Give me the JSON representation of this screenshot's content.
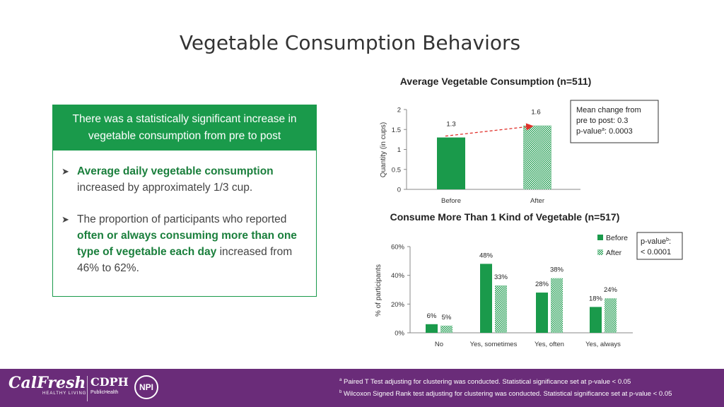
{
  "title": "Vegetable Consumption Behaviors",
  "panel": {
    "header": "There was a statistically significant increase in vegetable consumption from pre to post",
    "bullet1": {
      "bold": "Average daily vegetable consumption",
      "rest": " increased by approximately 1/3 cup."
    },
    "bullet2": {
      "pre": "The proportion of participants who reported ",
      "bold": "often or always consuming more than one type of vegetable each day",
      "rest": " increased from 46% to 62%."
    }
  },
  "chart_data": [
    {
      "type": "bar",
      "title": "Average Vegetable Consumption (n=511)",
      "ylabel": "Quantity (in cups)",
      "xlabel": "",
      "categories": [
        "Before",
        "After"
      ],
      "values": [
        1.3,
        1.6
      ],
      "data_labels": [
        "1.3",
        "1.6"
      ],
      "ylim": [
        0,
        2
      ],
      "yticks": [
        "0",
        "0.5",
        "1",
        "1.5",
        "2"
      ],
      "annotation": {
        "line1": "Mean change from",
        "line2": "pre to post: 0.3",
        "line3_pre": "p-value",
        "line3_sup": "a",
        "line3_post": ": 0.0003"
      }
    },
    {
      "type": "bar",
      "title": "Consume More Than 1 Kind of Vegetable (n=517)",
      "ylabel": "% of participants",
      "xlabel": "",
      "categories": [
        "No",
        "Yes, sometimes",
        "Yes, often",
        "Yes, always"
      ],
      "series": [
        {
          "name": "Before",
          "values": [
            6,
            48,
            28,
            18
          ],
          "labels": [
            "6%",
            "48%",
            "28%",
            "18%"
          ]
        },
        {
          "name": "After",
          "values": [
            5,
            33,
            38,
            24
          ],
          "labels": [
            "5%",
            "33%",
            "38%",
            "24%"
          ]
        }
      ],
      "ylim": [
        0,
        60
      ],
      "yticks": [
        "0%",
        "20%",
        "40%",
        "60%"
      ],
      "legend": "top-right",
      "annotation": {
        "line1_pre": "p-value",
        "line1_sup": "b",
        "line1_post": ":",
        "line2": "< 0.0001"
      }
    }
  ],
  "footer": {
    "note_a_sup": "a",
    "note_a": " Paired T Test adjusting for clustering was conducted. Statistical significance set at p-value < 0.05",
    "note_b_sup": "b",
    "note_b": " Wilcoxon Signed Rank test adjusting for clustering was conducted. Statistical significance set at p-value < 0.05",
    "logo1": "CalFresh",
    "logo1_sub": "HEALTHY LIVING",
    "logo2": "CDPH",
    "logo2_sub": "PublicHealth",
    "logo3": "NPI"
  },
  "colors": {
    "green": "#1a9a4b",
    "purple": "#6a2c79",
    "arrow": "#e0312b"
  }
}
